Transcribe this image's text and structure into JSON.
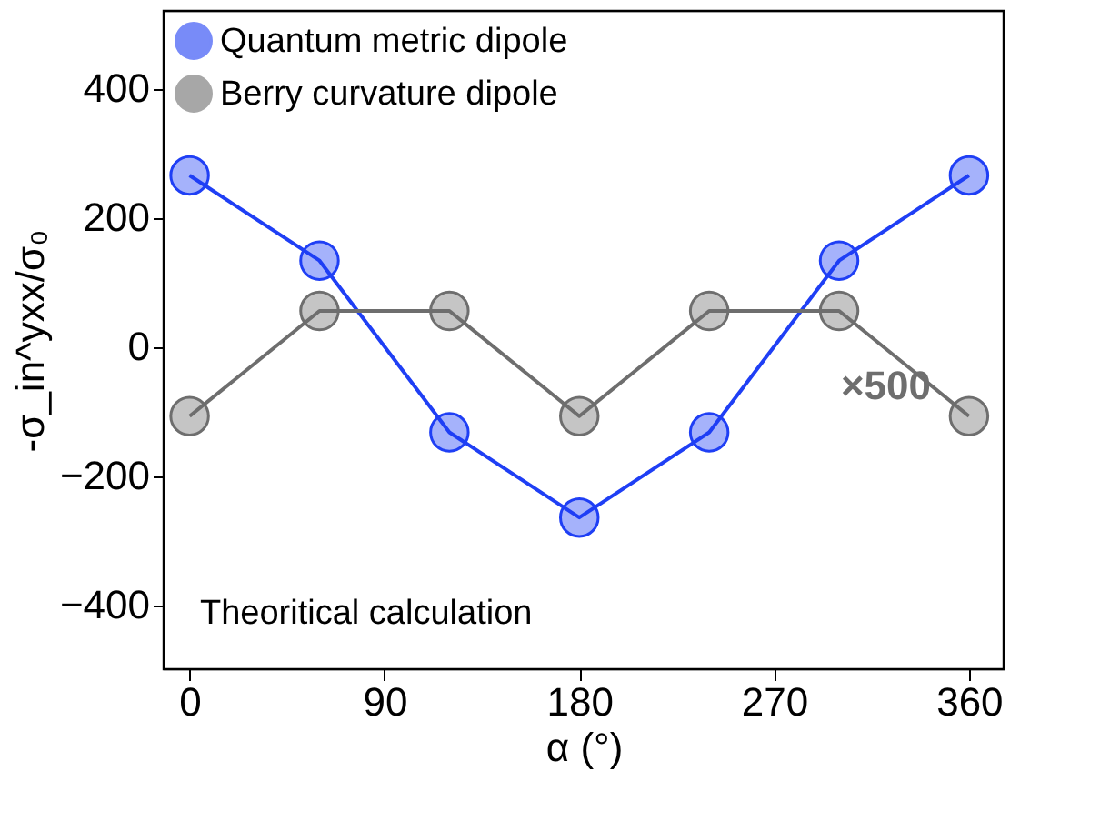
{
  "chart_data": {
    "type": "line",
    "xlabel": "α (°)",
    "ylabel": "-σ_in^yxx/σ₀",
    "x": [
      0,
      60,
      120,
      180,
      240,
      300,
      360
    ],
    "series": [
      {
        "name": "Quantum metric dipole",
        "color": "#1f3ff5",
        "values": [
          265,
          133,
          -133,
          -265,
          -133,
          133,
          265
        ]
      },
      {
        "name": "Berry curvature dipole",
        "color": "#6e6e6e",
        "values": [
          -108,
          55,
          55,
          -108,
          55,
          55,
          -108
        ]
      }
    ],
    "xlim": [
      -12,
      376
    ],
    "xticks": [
      0,
      90,
      180,
      270,
      360
    ],
    "ylim": [
      -500,
      520
    ],
    "yticks": [
      -400,
      -200,
      0,
      200,
      400
    ],
    "annotations": [
      "×500",
      "Theoritical calculation"
    ],
    "legend": "top left",
    "marker": "circle",
    "line_style": "solid",
    "grid": false
  }
}
